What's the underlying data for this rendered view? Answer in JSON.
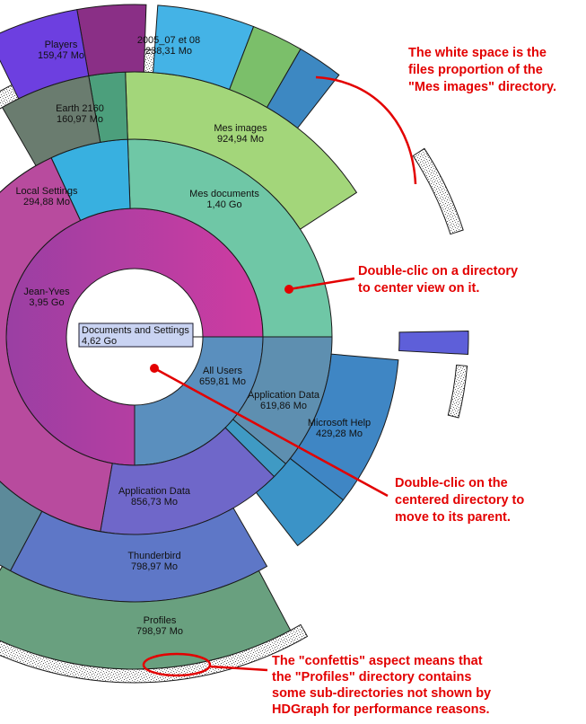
{
  "nodes": {
    "center": {
      "name": "Documents and Settings",
      "size": "4,62 Go",
      "color": "#8b95d9"
    },
    "jean_yves": {
      "name": "Jean-Yves",
      "size": "3,95 Go"
    },
    "all_users": {
      "name": "All Users",
      "size": "659,81 Mo"
    },
    "mes_documents": {
      "name": "Mes documents",
      "size": "1,40 Go"
    },
    "local_settings": {
      "name": "Local Settings",
      "size": "294,88 Mo"
    },
    "application_data_1": {
      "name": "Application Data",
      "size": "856,73 Mo"
    },
    "application_data_2": {
      "name": "Application Data",
      "size": "619,86 Mo"
    },
    "mes_images": {
      "name": "Mes images",
      "size": "924,94 Mo"
    },
    "earth_2160": {
      "name": "Earth 2160",
      "size": "160,97 Mo"
    },
    "players": {
      "name": "Players",
      "size": "159,47 Mo"
    },
    "photos_2005": {
      "name": "2005_07 et 08",
      "size": "238,31 Mo"
    },
    "thunderbird": {
      "name": "Thunderbird",
      "size": "798,97 Mo"
    },
    "profiles": {
      "name": "Profiles",
      "size": "798,97 Mo"
    },
    "microsoft_help": {
      "name": "Microsoft Help",
      "size": "429,28 Mo"
    }
  },
  "annotations": [
    {
      "id": "white-space",
      "lines": [
        "The white space is the",
        "files proportion of the",
        "\"Mes images\" directory."
      ]
    },
    {
      "id": "double-click-dir",
      "lines": [
        "Double-clic on a directory",
        "to center view on it."
      ]
    },
    {
      "id": "double-click-center",
      "lines": [
        "Double-clic on the",
        "centered directory to",
        "move to its parent."
      ]
    },
    {
      "id": "confettis",
      "lines": [
        "The \"confettis\" aspect means that",
        "the \"Profiles\" directory contains",
        "some sub-directories not shown by",
        "HDGraph for performance reasons."
      ]
    }
  ],
  "colors": {
    "annotation": "#e30000",
    "ring_border": "#1a1a1a"
  }
}
